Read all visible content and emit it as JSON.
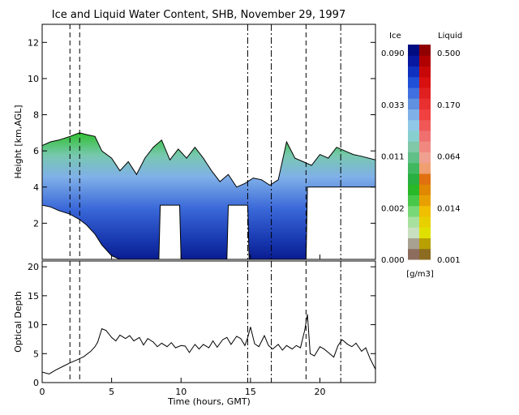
{
  "chart_data": [
    {
      "type": "heatmap",
      "title": "Ice and Liquid Water Content, SHB, November 29, 1997",
      "ylabel": "Height [km,AGL]",
      "xlim": [
        0,
        24
      ],
      "ylim": [
        0,
        13
      ],
      "xticks": [
        0,
        5,
        10,
        15,
        20
      ],
      "yticks": [
        2,
        4,
        6,
        8,
        10,
        12
      ],
      "vertical_markers_dashed": [
        2.0,
        2.7,
        19.0
      ],
      "vertical_markers_dashdot": [
        14.8,
        16.5,
        21.5
      ],
      "cloud_top_km": [
        [
          0,
          6.3
        ],
        [
          0.6,
          6.5
        ],
        [
          1.2,
          6.6
        ],
        [
          2.0,
          6.8
        ],
        [
          2.7,
          7.0
        ],
        [
          3.2,
          6.9
        ],
        [
          3.8,
          6.8
        ],
        [
          4.3,
          6.0
        ],
        [
          5.0,
          5.6
        ],
        [
          5.6,
          4.9
        ],
        [
          6.2,
          5.4
        ],
        [
          6.8,
          4.7
        ],
        [
          7.4,
          5.6
        ],
        [
          8.0,
          6.2
        ],
        [
          8.6,
          6.6
        ],
        [
          9.2,
          5.5
        ],
        [
          9.8,
          6.1
        ],
        [
          10.4,
          5.6
        ],
        [
          11.0,
          6.2
        ],
        [
          11.6,
          5.6
        ],
        [
          12.2,
          4.9
        ],
        [
          12.8,
          4.3
        ],
        [
          13.4,
          4.7
        ],
        [
          14.0,
          4.0
        ],
        [
          14.6,
          4.2
        ],
        [
          15.2,
          4.5
        ],
        [
          15.8,
          4.4
        ],
        [
          16.4,
          4.1
        ],
        [
          17.0,
          4.4
        ],
        [
          17.6,
          6.5
        ],
        [
          18.2,
          5.6
        ],
        [
          18.8,
          5.4
        ],
        [
          19.4,
          5.2
        ],
        [
          20.0,
          5.8
        ],
        [
          20.6,
          5.6
        ],
        [
          21.2,
          6.2
        ],
        [
          21.8,
          6.0
        ],
        [
          22.4,
          5.8
        ],
        [
          23.0,
          5.7
        ],
        [
          24.0,
          5.5
        ]
      ],
      "cloud_base_km": [
        [
          0,
          3.0
        ],
        [
          0.6,
          2.9
        ],
        [
          1.2,
          2.7
        ],
        [
          2.0,
          2.5
        ],
        [
          2.7,
          2.2
        ],
        [
          3.2,
          1.9
        ],
        [
          3.8,
          1.4
        ],
        [
          4.3,
          0.8
        ],
        [
          5.0,
          0.2
        ],
        [
          5.6,
          0
        ],
        [
          8.4,
          0
        ],
        [
          8.5,
          3.0
        ],
        [
          9.9,
          3.0
        ],
        [
          10.0,
          0
        ],
        [
          13.3,
          0
        ],
        [
          13.4,
          3.0
        ],
        [
          14.8,
          3.0
        ],
        [
          14.9,
          0
        ],
        [
          19.0,
          0
        ],
        [
          19.1,
          4.0
        ],
        [
          24.0,
          4.0
        ]
      ],
      "colorbar": {
        "ice_header": "Ice",
        "liquid_header": "Liquid",
        "units": "[g/m3]",
        "ice_ticks": [
          "0.090",
          "0.033",
          "0.011",
          "0.002",
          "0.000"
        ],
        "liquid_ticks": [
          "0.500",
          "0.170",
          "0.064",
          "0.014",
          "0.001"
        ],
        "ice_colors": [
          "#8c6c5c",
          "#a8a090",
          "#c8e0c0",
          "#a8e0a0",
          "#78d878",
          "#48c848",
          "#28b828",
          "#28b040",
          "#40b860",
          "#60c088",
          "#80c8a8",
          "#88d0d0",
          "#90c8e8",
          "#80b0e8",
          "#6090e0",
          "#4070e0",
          "#2050d8",
          "#1030c0",
          "#0818a0",
          "#000c80"
        ],
        "liquid_colors": [
          "#8c6c20",
          "#b8a000",
          "#e0e000",
          "#e8d000",
          "#f0c000",
          "#e8a000",
          "#e08800",
          "#e07010",
          "#f0a070",
          "#f0a090",
          "#f08880",
          "#f07070",
          "#f05858",
          "#f04040",
          "#e83030",
          "#e02020",
          "#d81010",
          "#c80808",
          "#b00000",
          "#900000"
        ]
      }
    },
    {
      "type": "line",
      "xlabel": "Time (hours, GMT)",
      "ylabel": "Optical Depth",
      "xlim": [
        0,
        24
      ],
      "ylim": [
        0,
        21
      ],
      "xticks": [
        0,
        5,
        10,
        15,
        20
      ],
      "yticks": [
        0,
        5,
        10,
        15,
        20
      ],
      "series": [
        {
          "x": [
            0,
            0.5,
            1.0,
            1.5,
            2.0,
            2.5,
            3.0,
            3.5,
            3.8,
            4.0,
            4.3,
            4.6,
            5.0,
            5.3,
            5.6,
            6.0,
            6.3,
            6.6,
            7.0,
            7.3,
            7.6,
            8.0,
            8.3,
            8.6,
            9.0,
            9.3,
            9.6,
            10.0,
            10.3,
            10.6,
            11.0,
            11.3,
            11.6,
            12.0,
            12.3,
            12.6,
            13.0,
            13.3,
            13.6,
            14.0,
            14.3,
            14.6,
            14.8,
            15.0,
            15.3,
            15.6,
            16.0,
            16.3,
            16.6,
            17.0,
            17.3,
            17.6,
            18.0,
            18.3,
            18.6,
            18.9,
            19.1,
            19.3,
            19.6,
            20.0,
            20.3,
            20.6,
            21.0,
            21.3,
            21.6,
            22.0,
            22.3,
            22.6,
            23.0,
            23.3,
            23.6,
            24.0
          ],
          "y": [
            1.8,
            1.5,
            2.2,
            2.8,
            3.4,
            3.9,
            4.5,
            5.4,
            6.2,
            7.0,
            9.3,
            9.0,
            7.8,
            7.2,
            8.2,
            7.6,
            8.1,
            7.2,
            7.8,
            6.5,
            7.6,
            7.0,
            6.2,
            6.8,
            6.2,
            6.9,
            6.0,
            6.4,
            6.3,
            5.2,
            6.6,
            5.8,
            6.6,
            6.0,
            7.2,
            6.1,
            7.4,
            7.8,
            6.6,
            8.0,
            7.6,
            6.4,
            7.8,
            9.6,
            6.7,
            6.2,
            8.1,
            6.4,
            5.8,
            6.6,
            5.6,
            6.4,
            5.8,
            6.4,
            6.0,
            9.0,
            11.8,
            5.0,
            4.6,
            6.2,
            5.8,
            5.2,
            4.4,
            6.4,
            7.4,
            6.6,
            6.2,
            6.8,
            5.4,
            6.0,
            4.2,
            2.3
          ]
        }
      ]
    }
  ]
}
